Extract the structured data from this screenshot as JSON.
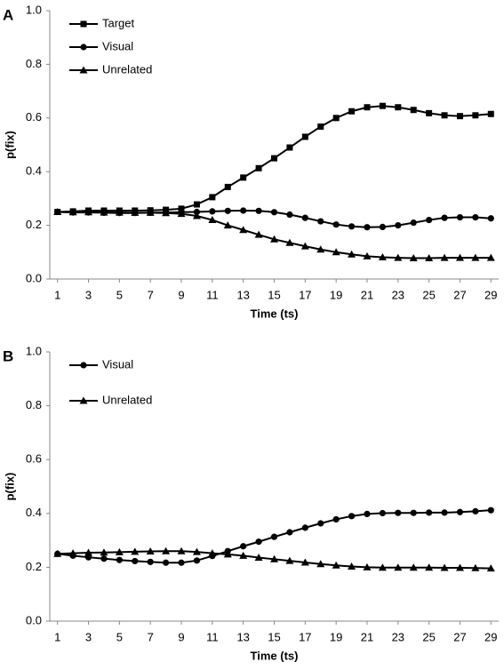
{
  "chart_data": [
    {
      "type": "line",
      "panel": "A",
      "xlabel": "Time (ts)",
      "ylabel": "p(fix)",
      "x": [
        1,
        2,
        3,
        4,
        5,
        6,
        7,
        8,
        9,
        10,
        11,
        12,
        13,
        14,
        15,
        16,
        17,
        18,
        19,
        20,
        21,
        22,
        23,
        24,
        25,
        26,
        27,
        28,
        29
      ],
      "xlim": [
        0.5,
        29.5
      ],
      "xticks": [
        1,
        3,
        5,
        7,
        9,
        11,
        13,
        15,
        17,
        19,
        21,
        23,
        25,
        27,
        29
      ],
      "ylim": [
        0,
        1
      ],
      "yticks": [
        {
          "value": 0,
          "label": "0.0"
        },
        0.2,
        0.4,
        0.6,
        0.8,
        {
          "value": 1,
          "label": "1.0"
        }
      ],
      "legend": "upper left",
      "series": [
        {
          "name": "Target",
          "color": "#000000",
          "marker": "square",
          "values": [
            0.25,
            0.252,
            0.255,
            0.255,
            0.255,
            0.255,
            0.256,
            0.258,
            0.262,
            0.278,
            0.305,
            0.343,
            0.378,
            0.413,
            0.45,
            0.49,
            0.53,
            0.568,
            0.6,
            0.625,
            0.64,
            0.645,
            0.64,
            0.63,
            0.618,
            0.61,
            0.607,
            0.61,
            0.615
          ]
        },
        {
          "name": "Visual",
          "color": "#000000",
          "marker": "circle",
          "values": [
            0.25,
            0.248,
            0.248,
            0.247,
            0.246,
            0.246,
            0.247,
            0.248,
            0.249,
            0.25,
            0.252,
            0.254,
            0.255,
            0.254,
            0.249,
            0.24,
            0.228,
            0.215,
            0.203,
            0.196,
            0.193,
            0.194,
            0.2,
            0.21,
            0.22,
            0.228,
            0.23,
            0.23,
            0.226
          ]
        },
        {
          "name": "Unrelated",
          "color": "#000000",
          "marker": "triangle",
          "values": [
            0.25,
            0.249,
            0.249,
            0.248,
            0.248,
            0.247,
            0.247,
            0.246,
            0.243,
            0.235,
            0.22,
            0.2,
            0.183,
            0.165,
            0.148,
            0.135,
            0.122,
            0.11,
            0.1,
            0.092,
            0.085,
            0.081,
            0.079,
            0.078,
            0.078,
            0.079,
            0.079,
            0.079,
            0.079
          ]
        }
      ]
    },
    {
      "type": "line",
      "panel": "B",
      "xlabel": "Time (ts)",
      "ylabel": "p(fix)",
      "x": [
        1,
        2,
        3,
        4,
        5,
        6,
        7,
        8,
        9,
        10,
        11,
        12,
        13,
        14,
        15,
        16,
        17,
        18,
        19,
        20,
        21,
        22,
        23,
        24,
        25,
        26,
        27,
        28,
        29
      ],
      "xlim": [
        0.5,
        29.5
      ],
      "xticks": [
        1,
        3,
        5,
        7,
        9,
        11,
        13,
        15,
        17,
        19,
        21,
        23,
        25,
        27,
        29
      ],
      "ylim": [
        0,
        1
      ],
      "yticks": [
        {
          "value": 0,
          "label": "0.0"
        },
        0.2,
        0.4,
        0.6,
        0.8,
        {
          "value": 1,
          "label": "1.0"
        }
      ],
      "legend": "upper left",
      "series": [
        {
          "name": "Visual",
          "color": "#000000",
          "marker": "circle",
          "values": [
            0.25,
            0.243,
            0.237,
            0.232,
            0.227,
            0.223,
            0.22,
            0.217,
            0.217,
            0.225,
            0.242,
            0.26,
            0.278,
            0.295,
            0.313,
            0.33,
            0.347,
            0.363,
            0.378,
            0.39,
            0.398,
            0.401,
            0.402,
            0.402,
            0.403,
            0.403,
            0.405,
            0.408,
            0.412
          ]
        },
        {
          "name": "Unrelated",
          "color": "#000000",
          "marker": "triangle",
          "values": [
            0.25,
            0.252,
            0.254,
            0.255,
            0.256,
            0.258,
            0.259,
            0.26,
            0.26,
            0.257,
            0.252,
            0.248,
            0.243,
            0.236,
            0.23,
            0.224,
            0.218,
            0.212,
            0.207,
            0.203,
            0.2,
            0.199,
            0.199,
            0.199,
            0.199,
            0.198,
            0.198,
            0.197,
            0.196
          ]
        }
      ]
    }
  ]
}
